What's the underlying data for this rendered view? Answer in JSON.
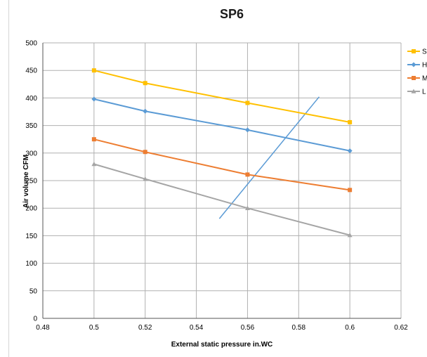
{
  "chart_data": {
    "type": "line",
    "title": "SP6",
    "xlabel": "External static pressure  in.WC",
    "ylabel": "Air volume  CFM",
    "xlim": [
      0.48,
      0.62
    ],
    "ylim": [
      0,
      500
    ],
    "x_ticks": [
      "0.48",
      "0.5",
      "0.52",
      "0.54",
      "0.56",
      "0.58",
      "0.6",
      "0.62"
    ],
    "y_ticks": [
      "0",
      "50",
      "100",
      "150",
      "200",
      "250",
      "300",
      "350",
      "400",
      "450",
      "500"
    ],
    "grid": true,
    "legend_position": "right",
    "x": [
      0.5,
      0.52,
      0.56,
      0.6
    ],
    "series": [
      {
        "name": "S",
        "marker": "square",
        "color": "#FFC000",
        "values": [
          450,
          427,
          391,
          356
        ]
      },
      {
        "name": "H",
        "marker": "diamond",
        "color": "#5B9BD5",
        "values": [
          398,
          376,
          342,
          304
        ]
      },
      {
        "name": "M",
        "marker": "square",
        "color": "#ED7D31",
        "values": [
          325,
          302,
          261,
          233
        ]
      },
      {
        "name": "L",
        "marker": "triangle",
        "color": "#A5A5A5",
        "values": [
          280,
          253,
          200,
          151
        ]
      }
    ],
    "reference_line": {
      "color": "#5B9BD5",
      "points": [
        [
          0.549,
          181
        ],
        [
          0.588,
          402
        ]
      ]
    }
  }
}
